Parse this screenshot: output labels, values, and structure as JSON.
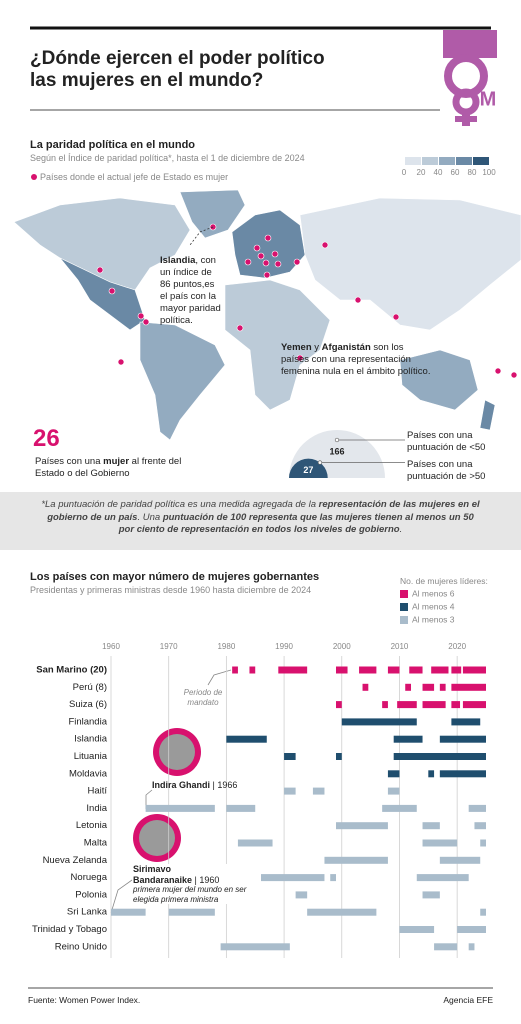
{
  "header": {
    "title": [
      "¿Dónde ejercen el poder político",
      "las mujeres en el mundo?"
    ],
    "logo_text": "M"
  },
  "map": {
    "title": "La paridad política en el mundo",
    "subtitle": "Según el Índice de paridad política*, hasta el 1 de diciembre de 2024",
    "dot_legend": "Países donde el actual jefe de Estado es mujer",
    "legend_ticks": [
      0,
      20,
      40,
      60,
      80,
      100
    ],
    "legend_colors": [
      "#dde4ec",
      "#bccbd8",
      "#93abc0",
      "#6a89a5",
      "#2f5677"
    ],
    "islandia": {
      "bold": "Islandia",
      "text": ", con un índice de 86 puntos,es el país con la mayor paridad política."
    },
    "yemen": {
      "bold1": "Yemen",
      "mid": " y ",
      "bold2": "Afganistán",
      "text": " son los países con una representación femenina nula en el ámbito político."
    }
  },
  "summary": {
    "value": 26,
    "text1": "Países con una ",
    "bold": "mujer",
    "text2": " al frente del Estado o del Gobierno"
  },
  "score_chart": {
    "type": "semicircle",
    "series": [
      {
        "value": 166,
        "label": "Países con una puntuación de <50",
        "color": "#e3e7ec"
      },
      {
        "value": 27,
        "label": "Países con una puntuación de >50",
        "color": "#2f5677"
      }
    ]
  },
  "note": {
    "p1": "*La puntuación de paridad política es una medida agregada de la ",
    "p2": "representación de las mujeres en el gobierno de un país",
    "p3": ". Una ",
    "p4": "puntuación de 100 representa que las mujeres tienen al menos un 50 por ciento de representación en todos los niveles de gobierno",
    "p5": "."
  },
  "chart_data": {
    "type": "timeline",
    "title": "Los países con mayor número de mujeres gobernantes",
    "subtitle": "Presidentas y primeras ministras desde 1960 hasta  diciembre de 2024",
    "legend_title": "No. de mujeres líderes:",
    "xlim": [
      1960,
      2025
    ],
    "xticks": [
      1960,
      1970,
      1980,
      1990,
      2000,
      2010,
      2020
    ],
    "groups": [
      {
        "name": "Al menos 6",
        "color": "#d8116e",
        "rows": [
          {
            "name": "San Marino (20)",
            "spans": [
              [
                1981,
                1982
              ],
              [
                1984,
                1985
              ],
              [
                1989,
                1994
              ],
              [
                1999,
                2001
              ],
              [
                2003,
                2006
              ],
              [
                2008,
                2010
              ],
              [
                2011.7,
                2014
              ],
              [
                2015.5,
                2018.5
              ],
              [
                2019,
                2020.7
              ],
              [
                2021,
                2025
              ]
            ]
          },
          {
            "name": "Perú (8)",
            "spans": [
              [
                2003.6,
                2004.6
              ],
              [
                2011,
                2012
              ],
              [
                2014,
                2016
              ],
              [
                2017,
                2018
              ],
              [
                2019,
                2025
              ]
            ]
          },
          {
            "name": "Suiza (6)",
            "spans": [
              [
                1999,
                2000
              ],
              [
                2007,
                2008
              ],
              [
                2009.6,
                2013
              ],
              [
                2014,
                2018
              ],
              [
                2019,
                2020.5
              ],
              [
                2021,
                2025
              ]
            ]
          }
        ]
      },
      {
        "name": "Al menos 4",
        "color": "#1f4e6e",
        "rows": [
          {
            "name": "Finlandia",
            "spans": [
              [
                2000,
                2013
              ],
              [
                2019,
                2024
              ]
            ]
          },
          {
            "name": "Islandia",
            "spans": [
              [
                1980,
                1987
              ],
              [
                2009,
                2014
              ],
              [
                2017,
                2025
              ]
            ]
          },
          {
            "name": "Lituania",
            "spans": [
              [
                1990,
                1992
              ],
              [
                1999,
                2000
              ],
              [
                2009,
                2025
              ]
            ]
          },
          {
            "name": "Moldavia",
            "spans": [
              [
                2008,
                2010
              ],
              [
                2015,
                2016
              ],
              [
                2017,
                2025
              ]
            ]
          }
        ]
      },
      {
        "name": "Al menos 3",
        "color": "#a9bccb",
        "rows": [
          {
            "name": "Haití",
            "spans": [
              [
                1990,
                1992
              ],
              [
                1995,
                1997
              ],
              [
                2008,
                2010
              ]
            ]
          },
          {
            "name": "India",
            "spans": [
              [
                1966,
                1978
              ],
              [
                1980,
                1985
              ],
              [
                2007,
                2013
              ],
              [
                2022,
                2025
              ]
            ]
          },
          {
            "name": "Letonia",
            "spans": [
              [
                1999,
                2008
              ],
              [
                2014,
                2017
              ],
              [
                2023,
                2025
              ]
            ]
          },
          {
            "name": "Malta",
            "spans": [
              [
                1982,
                1988
              ],
              [
                2014,
                2020
              ],
              [
                2024,
                2025
              ]
            ]
          },
          {
            "name": "Nueva Zelanda",
            "spans": [
              [
                1997,
                2008
              ],
              [
                2017,
                2024
              ]
            ]
          },
          {
            "name": "Noruega",
            "spans": [
              [
                1981,
                1982
              ],
              [
                1986,
                1997
              ],
              [
                1998,
                1999
              ],
              [
                2013,
                2022
              ]
            ]
          },
          {
            "name": "Polonia",
            "spans": [
              [
                1992,
                1994
              ],
              [
                2014,
                2017
              ]
            ]
          },
          {
            "name": "Sri Lanka",
            "spans": [
              [
                1960,
                1966
              ],
              [
                1970,
                1978
              ],
              [
                1994,
                2006
              ],
              [
                2024,
                2025
              ]
            ]
          },
          {
            "name": "Trinidad y Tobago",
            "spans": [
              [
                2010,
                2016
              ],
              [
                2020,
                2025
              ]
            ]
          },
          {
            "name": "Reino Unido",
            "spans": [
              [
                1979,
                1991
              ],
              [
                2016,
                2020
              ],
              [
                2022,
                2023
              ]
            ]
          }
        ]
      }
    ],
    "period_note": "Periodo de mandato",
    "indira": {
      "name": "Indira Ghandi",
      "year": " | 1966"
    },
    "sirimavo": {
      "name1": "Sirimavo",
      "name2": "Bandaranaike",
      "year": " | 1960",
      "note": "primera mujer del mundo en ser elegida primera ministra"
    }
  },
  "footer": {
    "source": "Fuente: Women Power Index.",
    "agency": "Agencia EFE"
  }
}
